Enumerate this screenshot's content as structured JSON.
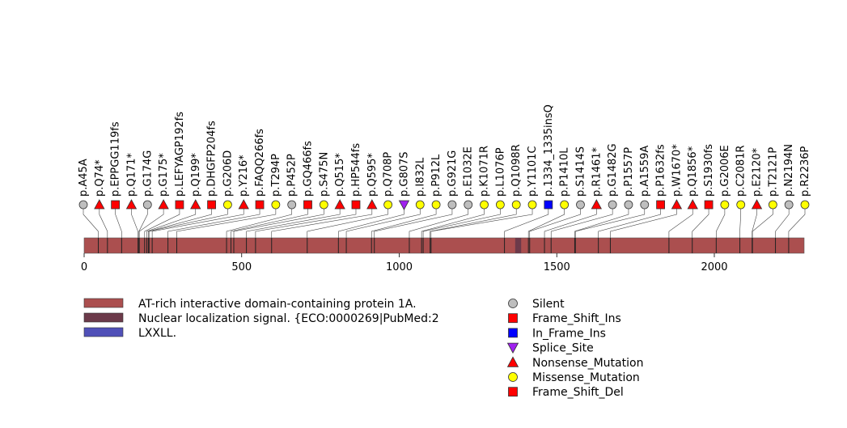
{
  "chart_data": {
    "type": "lollipop",
    "protein": {
      "length": 2285,
      "color": "#ab4f4f",
      "domains": [
        {
          "name": "Nuclear localization signal. {ECO:0000269|PubMed:2",
          "start": 1368,
          "end": 1387,
          "color": "#6c3a4a"
        }
      ]
    },
    "x_axis": {
      "range": [
        0,
        2285
      ],
      "ticks": [
        {
          "value": 0,
          "label": "0"
        },
        {
          "value": 500,
          "label": "500"
        },
        {
          "value": 1000,
          "label": "1000"
        },
        {
          "value": 1500,
          "label": "1500"
        },
        {
          "value": 2000,
          "label": "2000"
        }
      ]
    },
    "legend_domains": [
      {
        "label": "AT-rich interactive domain-containing protein 1A.",
        "color": "#ab4f4f"
      },
      {
        "label": "Nuclear localization signal. {ECO:0000269|PubMed:2",
        "color": "#6c3a4a"
      },
      {
        "label": "LXXLL.",
        "color": "#5050b8"
      }
    ],
    "legend_types": [
      {
        "label": "Silent",
        "shape": "circle",
        "color": "#bebebe"
      },
      {
        "label": "Frame_Shift_Ins",
        "shape": "square",
        "color": "#ff0000"
      },
      {
        "label": "In_Frame_Ins",
        "shape": "square",
        "color": "#0000ff"
      },
      {
        "label": "Splice_Site",
        "shape": "triangle-down",
        "color": "#a020f0"
      },
      {
        "label": "Nonsense_Mutation",
        "shape": "triangle-up",
        "color": "#ff0000"
      },
      {
        "label": "Missense_Mutation",
        "shape": "circle",
        "color": "#ffff00"
      },
      {
        "label": "Frame_Shift_Del",
        "shape": "square",
        "color": "#ff0000"
      }
    ],
    "mutations": [
      {
        "label": "p.A45A",
        "position": 45,
        "type": "Silent"
      },
      {
        "label": "p.Q74*",
        "position": 74,
        "type": "Nonsense_Mutation"
      },
      {
        "label": "p.EPPGG119fs",
        "position": 119,
        "type": "Frame_Shift_Del"
      },
      {
        "label": "p.Q171*",
        "position": 171,
        "type": "Nonsense_Mutation"
      },
      {
        "label": "p.G174G",
        "position": 174,
        "type": "Silent"
      },
      {
        "label": "p.G175*",
        "position": 175,
        "type": "Nonsense_Mutation"
      },
      {
        "label": "p.LEFYAGP192fs",
        "position": 192,
        "type": "Frame_Shift_Del"
      },
      {
        "label": "p.Q199*",
        "position": 199,
        "type": "Nonsense_Mutation"
      },
      {
        "label": "p.DHGFP204fs",
        "position": 204,
        "type": "Frame_Shift_Del"
      },
      {
        "label": "p.G206D",
        "position": 206,
        "type": "Missense_Mutation"
      },
      {
        "label": "p.Y216*",
        "position": 216,
        "type": "Nonsense_Mutation"
      },
      {
        "label": "p.FAQQ266fs",
        "position": 266,
        "type": "Frame_Shift_Del"
      },
      {
        "label": "p.T294P",
        "position": 294,
        "type": "Missense_Mutation"
      },
      {
        "label": "p.P452P",
        "position": 452,
        "type": "Silent"
      },
      {
        "label": "p.GQ466fs",
        "position": 466,
        "type": "Frame_Shift_Del"
      },
      {
        "label": "p.S475N",
        "position": 475,
        "type": "Missense_Mutation"
      },
      {
        "label": "p.Q515*",
        "position": 515,
        "type": "Nonsense_Mutation"
      },
      {
        "label": "p.HP544fs",
        "position": 544,
        "type": "Frame_Shift_Del"
      },
      {
        "label": "p.Q595*",
        "position": 595,
        "type": "Nonsense_Mutation"
      },
      {
        "label": "p.Q708P",
        "position": 708,
        "type": "Missense_Mutation"
      },
      {
        "label": "p.G807S",
        "position": 807,
        "type": "Splice_Site"
      },
      {
        "label": "p.I832L",
        "position": 832,
        "type": "Missense_Mutation"
      },
      {
        "label": "p.P912L",
        "position": 912,
        "type": "Missense_Mutation"
      },
      {
        "label": "p.G921G",
        "position": 921,
        "type": "Silent"
      },
      {
        "label": "p.E1032E",
        "position": 1032,
        "type": "Silent"
      },
      {
        "label": "p.K1071R",
        "position": 1071,
        "type": "Missense_Mutation"
      },
      {
        "label": "p.L1076P",
        "position": 1076,
        "type": "Missense_Mutation"
      },
      {
        "label": "p.Q1098R",
        "position": 1098,
        "type": "Missense_Mutation"
      },
      {
        "label": "p.Y1101C",
        "position": 1101,
        "type": "Missense_Mutation"
      },
      {
        "label": "p.1334_1335insQ",
        "position": 1334,
        "type": "In_Frame_Ins"
      },
      {
        "label": "p.P1410L",
        "position": 1410,
        "type": "Missense_Mutation"
      },
      {
        "label": "p.S1414S",
        "position": 1414,
        "type": "Silent"
      },
      {
        "label": "p.R1461*",
        "position": 1461,
        "type": "Nonsense_Mutation"
      },
      {
        "label": "p.G1482G",
        "position": 1482,
        "type": "Silent"
      },
      {
        "label": "p.P1557P",
        "position": 1557,
        "type": "Silent"
      },
      {
        "label": "p.A1559A",
        "position": 1559,
        "type": "Silent"
      },
      {
        "label": "p.P1632fs",
        "position": 1632,
        "type": "Frame_Shift_Del"
      },
      {
        "label": "p.W1670*",
        "position": 1670,
        "type": "Nonsense_Mutation"
      },
      {
        "label": "p.Q1856*",
        "position": 1856,
        "type": "Nonsense_Mutation"
      },
      {
        "label": "p.S1930fs",
        "position": 1930,
        "type": "Frame_Shift_Del"
      },
      {
        "label": "p.G2006E",
        "position": 2006,
        "type": "Missense_Mutation"
      },
      {
        "label": "p.C2081R",
        "position": 2081,
        "type": "Missense_Mutation"
      },
      {
        "label": "p.E2120*",
        "position": 2120,
        "type": "Nonsense_Mutation"
      },
      {
        "label": "p.T2121P",
        "position": 2121,
        "type": "Missense_Mutation"
      },
      {
        "label": "p.N2194N",
        "position": 2194,
        "type": "Silent"
      },
      {
        "label": "p.R2236P",
        "position": 2236,
        "type": "Missense_Mutation"
      }
    ]
  }
}
